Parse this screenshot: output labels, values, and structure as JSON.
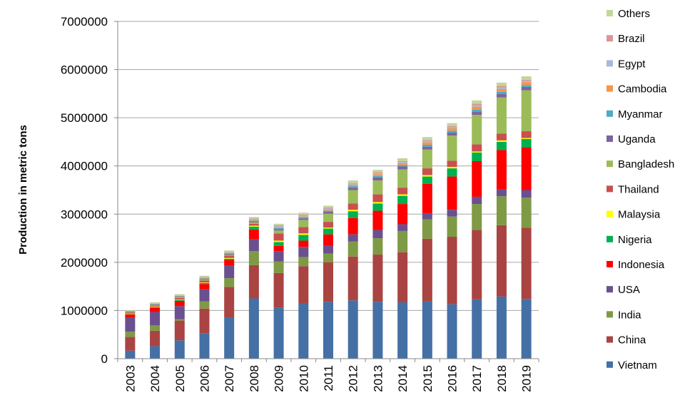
{
  "chart_data": {
    "type": "bar",
    "stacked": true,
    "title": "",
    "xlabel": "",
    "ylabel": "Production in metric tons",
    "ylim": [
      0,
      7000000
    ],
    "yticks": [
      0,
      1000000,
      2000000,
      3000000,
      4000000,
      5000000,
      6000000,
      7000000
    ],
    "ytick_labels": [
      "0",
      "1000000",
      "2000000",
      "3000000",
      "4000000",
      "5000000",
      "6000000",
      "7000000"
    ],
    "grid": "horizontal",
    "legend_position": "right",
    "categories": [
      "2003",
      "2004",
      "2005",
      "2006",
      "2007",
      "2008",
      "2009",
      "2010",
      "2011",
      "2012",
      "2013",
      "2014",
      "2015",
      "2016",
      "2017",
      "2018",
      "2019"
    ],
    "series": [
      {
        "name": "Vietnam",
        "color": "#4470A5",
        "values": [
          165000,
          260000,
          380000,
          530000,
          850000,
          1250000,
          1060000,
          1140000,
          1180000,
          1210000,
          1180000,
          1170000,
          1190000,
          1130000,
          1230000,
          1290000,
          1240000
        ]
      },
      {
        "name": "China",
        "color": "#A94442",
        "values": [
          285000,
          320000,
          410000,
          510000,
          640000,
          690000,
          720000,
          780000,
          820000,
          910000,
          980000,
          1040000,
          1300000,
          1400000,
          1440000,
          1480000,
          1480000
        ]
      },
      {
        "name": "India",
        "color": "#7F9A44",
        "values": [
          110000,
          110000,
          30000,
          150000,
          180000,
          290000,
          240000,
          190000,
          180000,
          310000,
          340000,
          440000,
          400000,
          420000,
          540000,
          600000,
          620000
        ]
      },
      {
        "name": "USA",
        "color": "#6B5090",
        "values": [
          290000,
          280000,
          270000,
          250000,
          260000,
          250000,
          210000,
          210000,
          160000,
          150000,
          170000,
          140000,
          130000,
          140000,
          150000,
          140000,
          160000
        ]
      },
      {
        "name": "Indonesia",
        "color": "#FF0000",
        "values": [
          70000,
          90000,
          110000,
          110000,
          120000,
          200000,
          110000,
          130000,
          240000,
          340000,
          400000,
          420000,
          610000,
          690000,
          740000,
          820000,
          890000
        ]
      },
      {
        "name": "Nigeria",
        "color": "#00B050",
        "values": [
          5000,
          10000,
          20000,
          20000,
          25000,
          60000,
          80000,
          120000,
          120000,
          140000,
          150000,
          170000,
          150000,
          170000,
          180000,
          170000,
          170000
        ]
      },
      {
        "name": "Malaysia",
        "color": "#FFFF00",
        "values": [
          10000,
          10000,
          10000,
          10000,
          15000,
          20000,
          30000,
          30000,
          20000,
          30000,
          30000,
          30000,
          30000,
          30000,
          20000,
          30000,
          20000
        ]
      },
      {
        "name": "Thailand",
        "color": "#C9504E",
        "values": [
          20000,
          20000,
          30000,
          40000,
          50000,
          40000,
          150000,
          130000,
          120000,
          130000,
          160000,
          140000,
          140000,
          130000,
          150000,
          140000,
          140000
        ]
      },
      {
        "name": "Bangladesh",
        "color": "#9BBB59",
        "values": [
          15000,
          15000,
          15000,
          20000,
          20000,
          30000,
          60000,
          150000,
          170000,
          280000,
          290000,
          380000,
          390000,
          520000,
          610000,
          750000,
          850000
        ]
      },
      {
        "name": "Uganda",
        "color": "#7E62A1",
        "values": [
          10000,
          10000,
          10000,
          15000,
          15000,
          20000,
          30000,
          30000,
          40000,
          50000,
          60000,
          60000,
          60000,
          60000,
          60000,
          70000,
          70000
        ]
      },
      {
        "name": "Myanmar",
        "color": "#4BACC6",
        "values": [
          5000,
          10000,
          10000,
          10000,
          10000,
          15000,
          20000,
          20000,
          25000,
          30000,
          30000,
          30000,
          40000,
          40000,
          50000,
          50000,
          40000
        ]
      },
      {
        "name": "Cambodia",
        "color": "#F79646",
        "values": [
          5000,
          5000,
          10000,
          10000,
          10000,
          15000,
          20000,
          20000,
          20000,
          30000,
          40000,
          40000,
          50000,
          50000,
          60000,
          60000,
          60000
        ]
      },
      {
        "name": "Egypt",
        "color": "#A7B9DB",
        "values": [
          3000,
          5000,
          10000,
          10000,
          10000,
          15000,
          20000,
          20000,
          20000,
          20000,
          20000,
          20000,
          30000,
          30000,
          30000,
          30000,
          30000
        ]
      },
      {
        "name": "Brazil",
        "color": "#D99694",
        "values": [
          3000,
          5000,
          5000,
          10000,
          10000,
          15000,
          20000,
          20000,
          20000,
          20000,
          20000,
          20000,
          20000,
          20000,
          30000,
          30000,
          20000
        ]
      },
      {
        "name": "Others",
        "color": "#C3D69B",
        "values": [
          10000,
          20000,
          20000,
          25000,
          30000,
          30000,
          30000,
          40000,
          40000,
          50000,
          50000,
          60000,
          60000,
          60000,
          70000,
          70000,
          70000
        ]
      }
    ]
  }
}
